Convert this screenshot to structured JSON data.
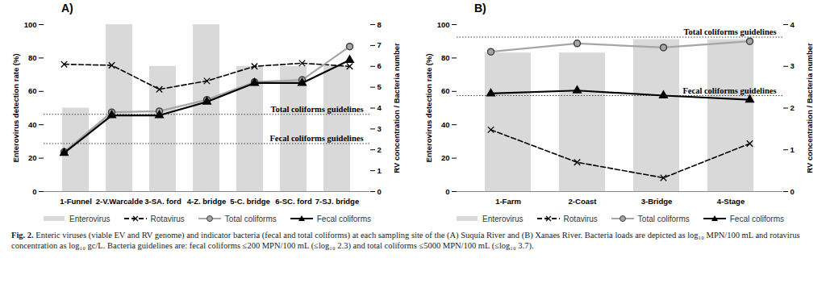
{
  "chart_data": [
    {
      "type": "bar",
      "title": "A)",
      "categories": [
        "1-Funnel",
        "2-V.Warcalde",
        "3-SA. ford",
        "4-Z. bridge",
        "5-C. bridge",
        "6-SC. ford",
        "7-SJ. bridge"
      ],
      "ylabel": "Enterovirus detection rate (%)",
      "y2label": "RV concentration / Bacteria number",
      "ylim": [
        0,
        100
      ],
      "yticks": [
        0,
        20,
        40,
        60,
        80,
        100
      ],
      "y2lim": [
        0,
        8
      ],
      "y2ticks": [
        0,
        1,
        2,
        3,
        4,
        5,
        6,
        7,
        8
      ],
      "series": [
        {
          "name": "Enterovirus",
          "type": "bar",
          "color": "#d9d9d9",
          "values": [
            50,
            100,
            75,
            100,
            75,
            75,
            75
          ]
        },
        {
          "name": "Rotavirus",
          "type": "line",
          "axis": "y2",
          "color": "#000000",
          "line_style": "dashed",
          "marker": "x",
          "values": [
            6.1,
            6.05,
            4.9,
            5.3,
            6.0,
            6.15,
            6.0
          ]
        },
        {
          "name": "Total coliforms",
          "type": "line",
          "axis": "y2",
          "color": "#a6a6a6",
          "line_style": "solid",
          "marker": "circle",
          "values": [
            1.9,
            3.8,
            3.85,
            4.4,
            5.25,
            5.35,
            6.95
          ]
        },
        {
          "name": "Fecal coliforms",
          "type": "line",
          "axis": "y2",
          "color": "#000000",
          "line_style": "solid",
          "marker": "triangle",
          "values": [
            1.85,
            3.65,
            3.65,
            4.3,
            5.2,
            5.2,
            6.3
          ]
        }
      ],
      "annotations": [
        {
          "text": "Total coliforms guidelines",
          "value": 3.7,
          "axis": "y2"
        },
        {
          "text": "Fecal coliforms guidelines",
          "value": 2.3,
          "axis": "y2"
        }
      ]
    },
    {
      "type": "bar",
      "title": "B)",
      "categories": [
        "1-Farm",
        "2-Coast",
        "3-Bridge",
        "4-Stage"
      ],
      "ylabel": "Enterovirus detection rate (%)",
      "y2label": "RV concentration / Bacteria number",
      "ylim": [
        0,
        100
      ],
      "yticks": [
        0,
        20,
        40,
        60,
        80,
        100
      ],
      "y2lim": [
        0,
        4
      ],
      "y2ticks": [
        0,
        1,
        2,
        3,
        4
      ],
      "series": [
        {
          "name": "Enterovirus",
          "type": "bar",
          "color": "#d9d9d9",
          "values": [
            83,
            83,
            91,
            91
          ]
        },
        {
          "name": "Rotavirus",
          "type": "line",
          "axis": "y2",
          "color": "#000000",
          "line_style": "dashed",
          "marker": "x",
          "values": [
            1.48,
            0.7,
            0.33,
            1.15
          ]
        },
        {
          "name": "Total coliforms",
          "type": "line",
          "axis": "y2",
          "color": "#a6a6a6",
          "line_style": "solid",
          "marker": "circle",
          "values": [
            3.35,
            3.55,
            3.45,
            3.6
          ]
        },
        {
          "name": "Fecal coliforms",
          "type": "line",
          "axis": "y2",
          "color": "#000000",
          "line_style": "solid",
          "marker": "triangle",
          "values": [
            2.35,
            2.42,
            2.3,
            2.2
          ]
        }
      ],
      "annotations": [
        {
          "text": "Total coliforms guidelines",
          "value": 3.7,
          "axis": "y2"
        },
        {
          "text": "Fecal coliforms guidelines",
          "value": 2.3,
          "axis": "y2"
        }
      ]
    }
  ],
  "caption": {
    "label": "Fig. 2.",
    "text": "Enteric viruses (viable EV and RV genome) and indicator bacteria (fecal and total coliforms) at each sampling site of the (A) Suquía River and (B) Xanaes River. Bacteria loads are depicted as log₁₀ MPN/100 mL and rotavirus concentration as log₁₀ gc/L. Bacteria guidelines are: fecal coliforms ≤200 MPN/100 mL (≤log₁₀ 2.3) and total coliforms ≤5000 MPN/100 mL (≤log₁₀ 3.7)."
  }
}
